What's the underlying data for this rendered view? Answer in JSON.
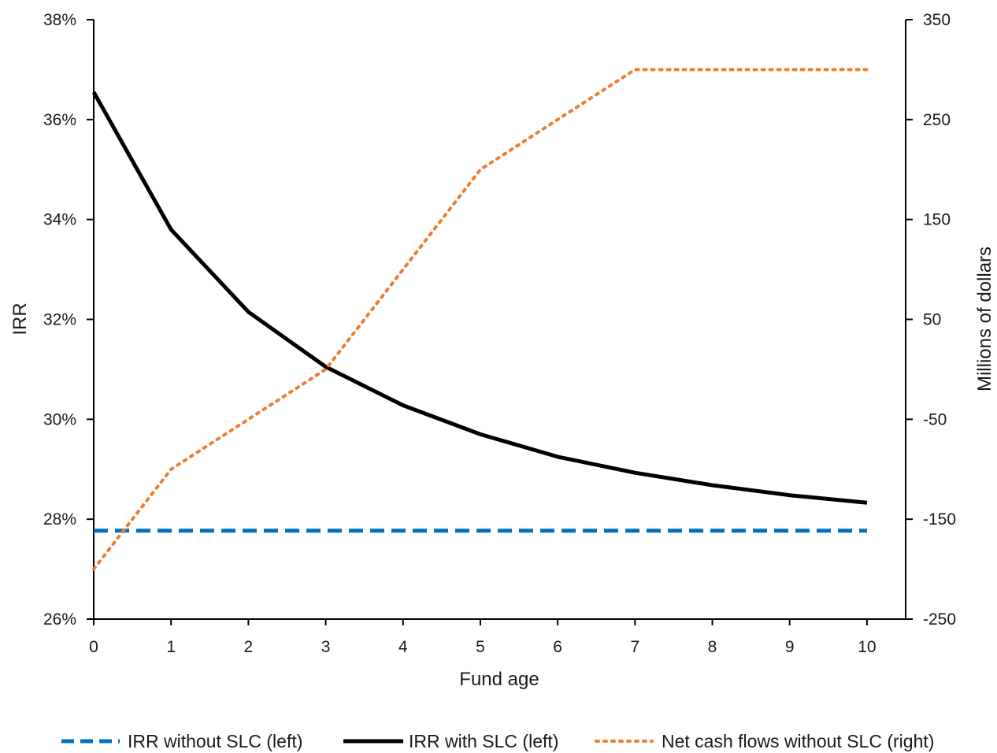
{
  "chart_data": {
    "type": "line",
    "xlabel": "Fund age",
    "ylabel_left": "IRR",
    "ylabel_right": "Millions of dollars",
    "x": [
      0,
      1,
      2,
      3,
      4,
      5,
      6,
      7,
      8,
      9,
      10
    ],
    "x_ticks": [
      "0",
      "1",
      "2",
      "3",
      "4",
      "5",
      "6",
      "7",
      "8",
      "9",
      "10"
    ],
    "xlim": [
      0,
      10.5
    ],
    "ylim_left": [
      26,
      38
    ],
    "ylim_right": [
      -250,
      350
    ],
    "y_left_ticks": [
      26,
      28,
      30,
      32,
      34,
      36,
      38
    ],
    "y_left_tick_labels": [
      "26%",
      "28%",
      "30%",
      "32%",
      "34%",
      "36%",
      "38%"
    ],
    "y_right_ticks": [
      -250,
      -150,
      -50,
      50,
      150,
      250,
      350
    ],
    "y_right_tick_labels": [
      "-250",
      "-150",
      "-50",
      "50",
      "150",
      "250",
      "350"
    ],
    "grid": false,
    "legend_position": "bottom",
    "series": [
      {
        "name": "IRR without SLC (left)",
        "axis": "left",
        "style": "dashed",
        "color": "#0070C0",
        "values": [
          27.77,
          27.77,
          27.77,
          27.77,
          27.77,
          27.77,
          27.77,
          27.77,
          27.77,
          27.77,
          27.77
        ]
      },
      {
        "name": "IRR with SLC (left)",
        "axis": "left",
        "style": "solid",
        "color": "#000000",
        "values": [
          36.55,
          33.8,
          32.15,
          31.05,
          30.28,
          29.7,
          29.25,
          28.93,
          28.68,
          28.48,
          28.33
        ]
      },
      {
        "name": "Net cash flows without SLC (right)",
        "axis": "right",
        "style": "dotted",
        "color": "#ED7D31",
        "values": [
          -200,
          -100,
          -50,
          0,
          100,
          200,
          250,
          300,
          300,
          300,
          300
        ]
      }
    ]
  }
}
